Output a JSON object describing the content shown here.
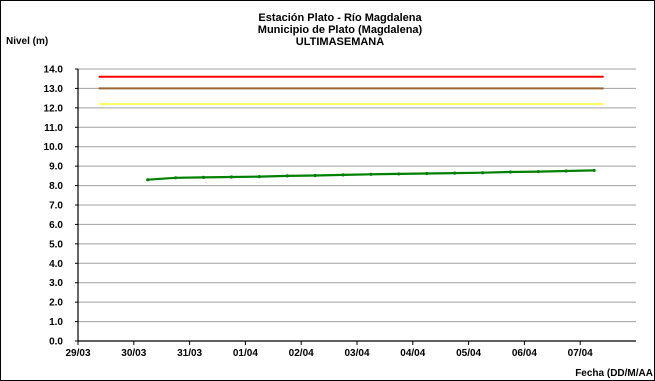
{
  "chart_data": {
    "type": "line",
    "title_lines": [
      "Estación Plato - Río Magdalena",
      "Municipio de Plato (Magdalena)",
      "ULTIMASEMANA"
    ],
    "ylabel": "Nivel (m)",
    "xlabel": "Fecha (DD/M/AA",
    "ylim": [
      0,
      14
    ],
    "yticks": [
      "0.0",
      "1.0",
      "2.0",
      "3.0",
      "4.0",
      "5.0",
      "6.0",
      "7.0",
      "8.0",
      "9.0",
      "10.0",
      "11.0",
      "12.0",
      "13.0",
      "14.0"
    ],
    "xlim": [
      0,
      10
    ],
    "xticks": [
      "29/03",
      "30/03",
      "31/03",
      "01/04",
      "02/04",
      "03/04",
      "04/04",
      "05/04",
      "06/04",
      "07/04"
    ],
    "grid": true,
    "reference_lines": [
      {
        "color": "#ff0000",
        "y": 13.6,
        "x_start": 0.37,
        "x_end": 9.42
      },
      {
        "color": "#996633",
        "y": 13.0,
        "x_start": 0.37,
        "x_end": 9.42
      },
      {
        "color": "#ffff66",
        "y": 12.2,
        "x_start": 0.37,
        "x_end": 9.42
      }
    ],
    "series": [
      {
        "color": "#008000",
        "x": [
          1.25,
          1.75,
          2.25,
          2.75,
          3.25,
          3.75,
          4.25,
          4.75,
          5.25,
          5.75,
          6.25,
          6.75,
          7.25,
          7.75,
          8.25,
          8.75,
          9.25
        ],
        "y": [
          8.3,
          8.4,
          8.42,
          8.44,
          8.46,
          8.5,
          8.52,
          8.55,
          8.58,
          8.6,
          8.62,
          8.64,
          8.66,
          8.7,
          8.72,
          8.75,
          8.78
        ]
      }
    ]
  }
}
